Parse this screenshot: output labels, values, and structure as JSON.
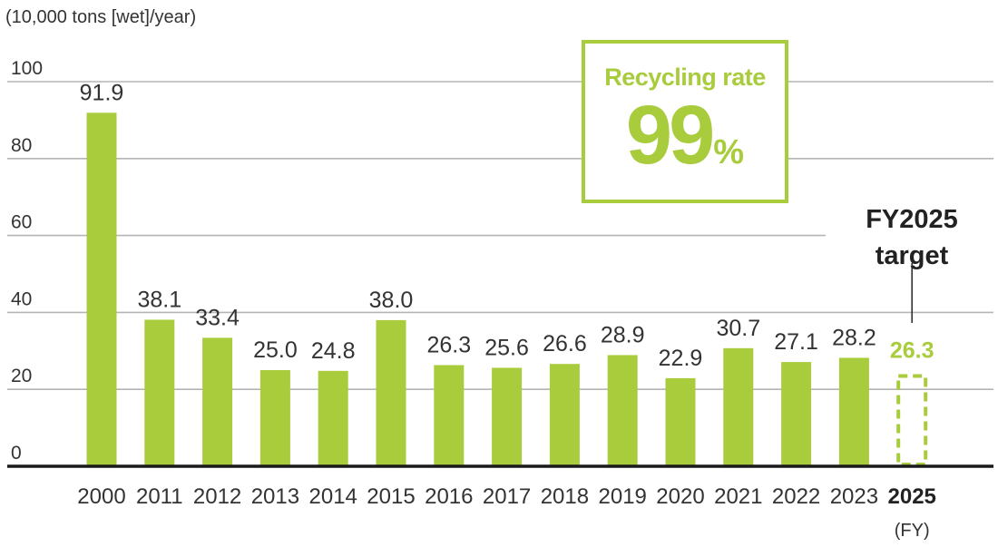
{
  "unit_label": "(10,000 tons [wet]/year)",
  "callout": {
    "title": "Recycling rate",
    "value": "99",
    "unit": "%"
  },
  "target_label": {
    "line1": "FY2025",
    "line2": "target"
  },
  "fy_label": "(FY)",
  "colors": {
    "bar": "#a8cc3c",
    "target": "#a8cc3c",
    "grid": "#b5b5b5",
    "axis": "#1a1a1a",
    "text": "#333333"
  },
  "chart_data": {
    "type": "bar",
    "categories": [
      "2000",
      "2011",
      "2012",
      "2013",
      "2014",
      "2015",
      "2016",
      "2017",
      "2018",
      "2019",
      "2020",
      "2021",
      "2022",
      "2023",
      "2025"
    ],
    "values": [
      91.9,
      38.1,
      33.4,
      25.0,
      24.8,
      38.0,
      26.3,
      25.6,
      26.6,
      28.9,
      22.9,
      30.7,
      27.1,
      28.2,
      26.3
    ],
    "value_labels": [
      "91.9",
      "38.1",
      "33.4",
      "25.0",
      "24.8",
      "38.0",
      "26.3",
      "25.6",
      "26.6",
      "28.9",
      "22.9",
      "30.7",
      "27.1",
      "28.2",
      "26.3"
    ],
    "target_category": "2025",
    "yticks": [
      0,
      20,
      40,
      60,
      80,
      100
    ],
    "ylim": [
      0,
      100
    ],
    "ylabel": "(10,000 tons [wet]/year)",
    "xlabel": "(FY)",
    "grid": true
  }
}
